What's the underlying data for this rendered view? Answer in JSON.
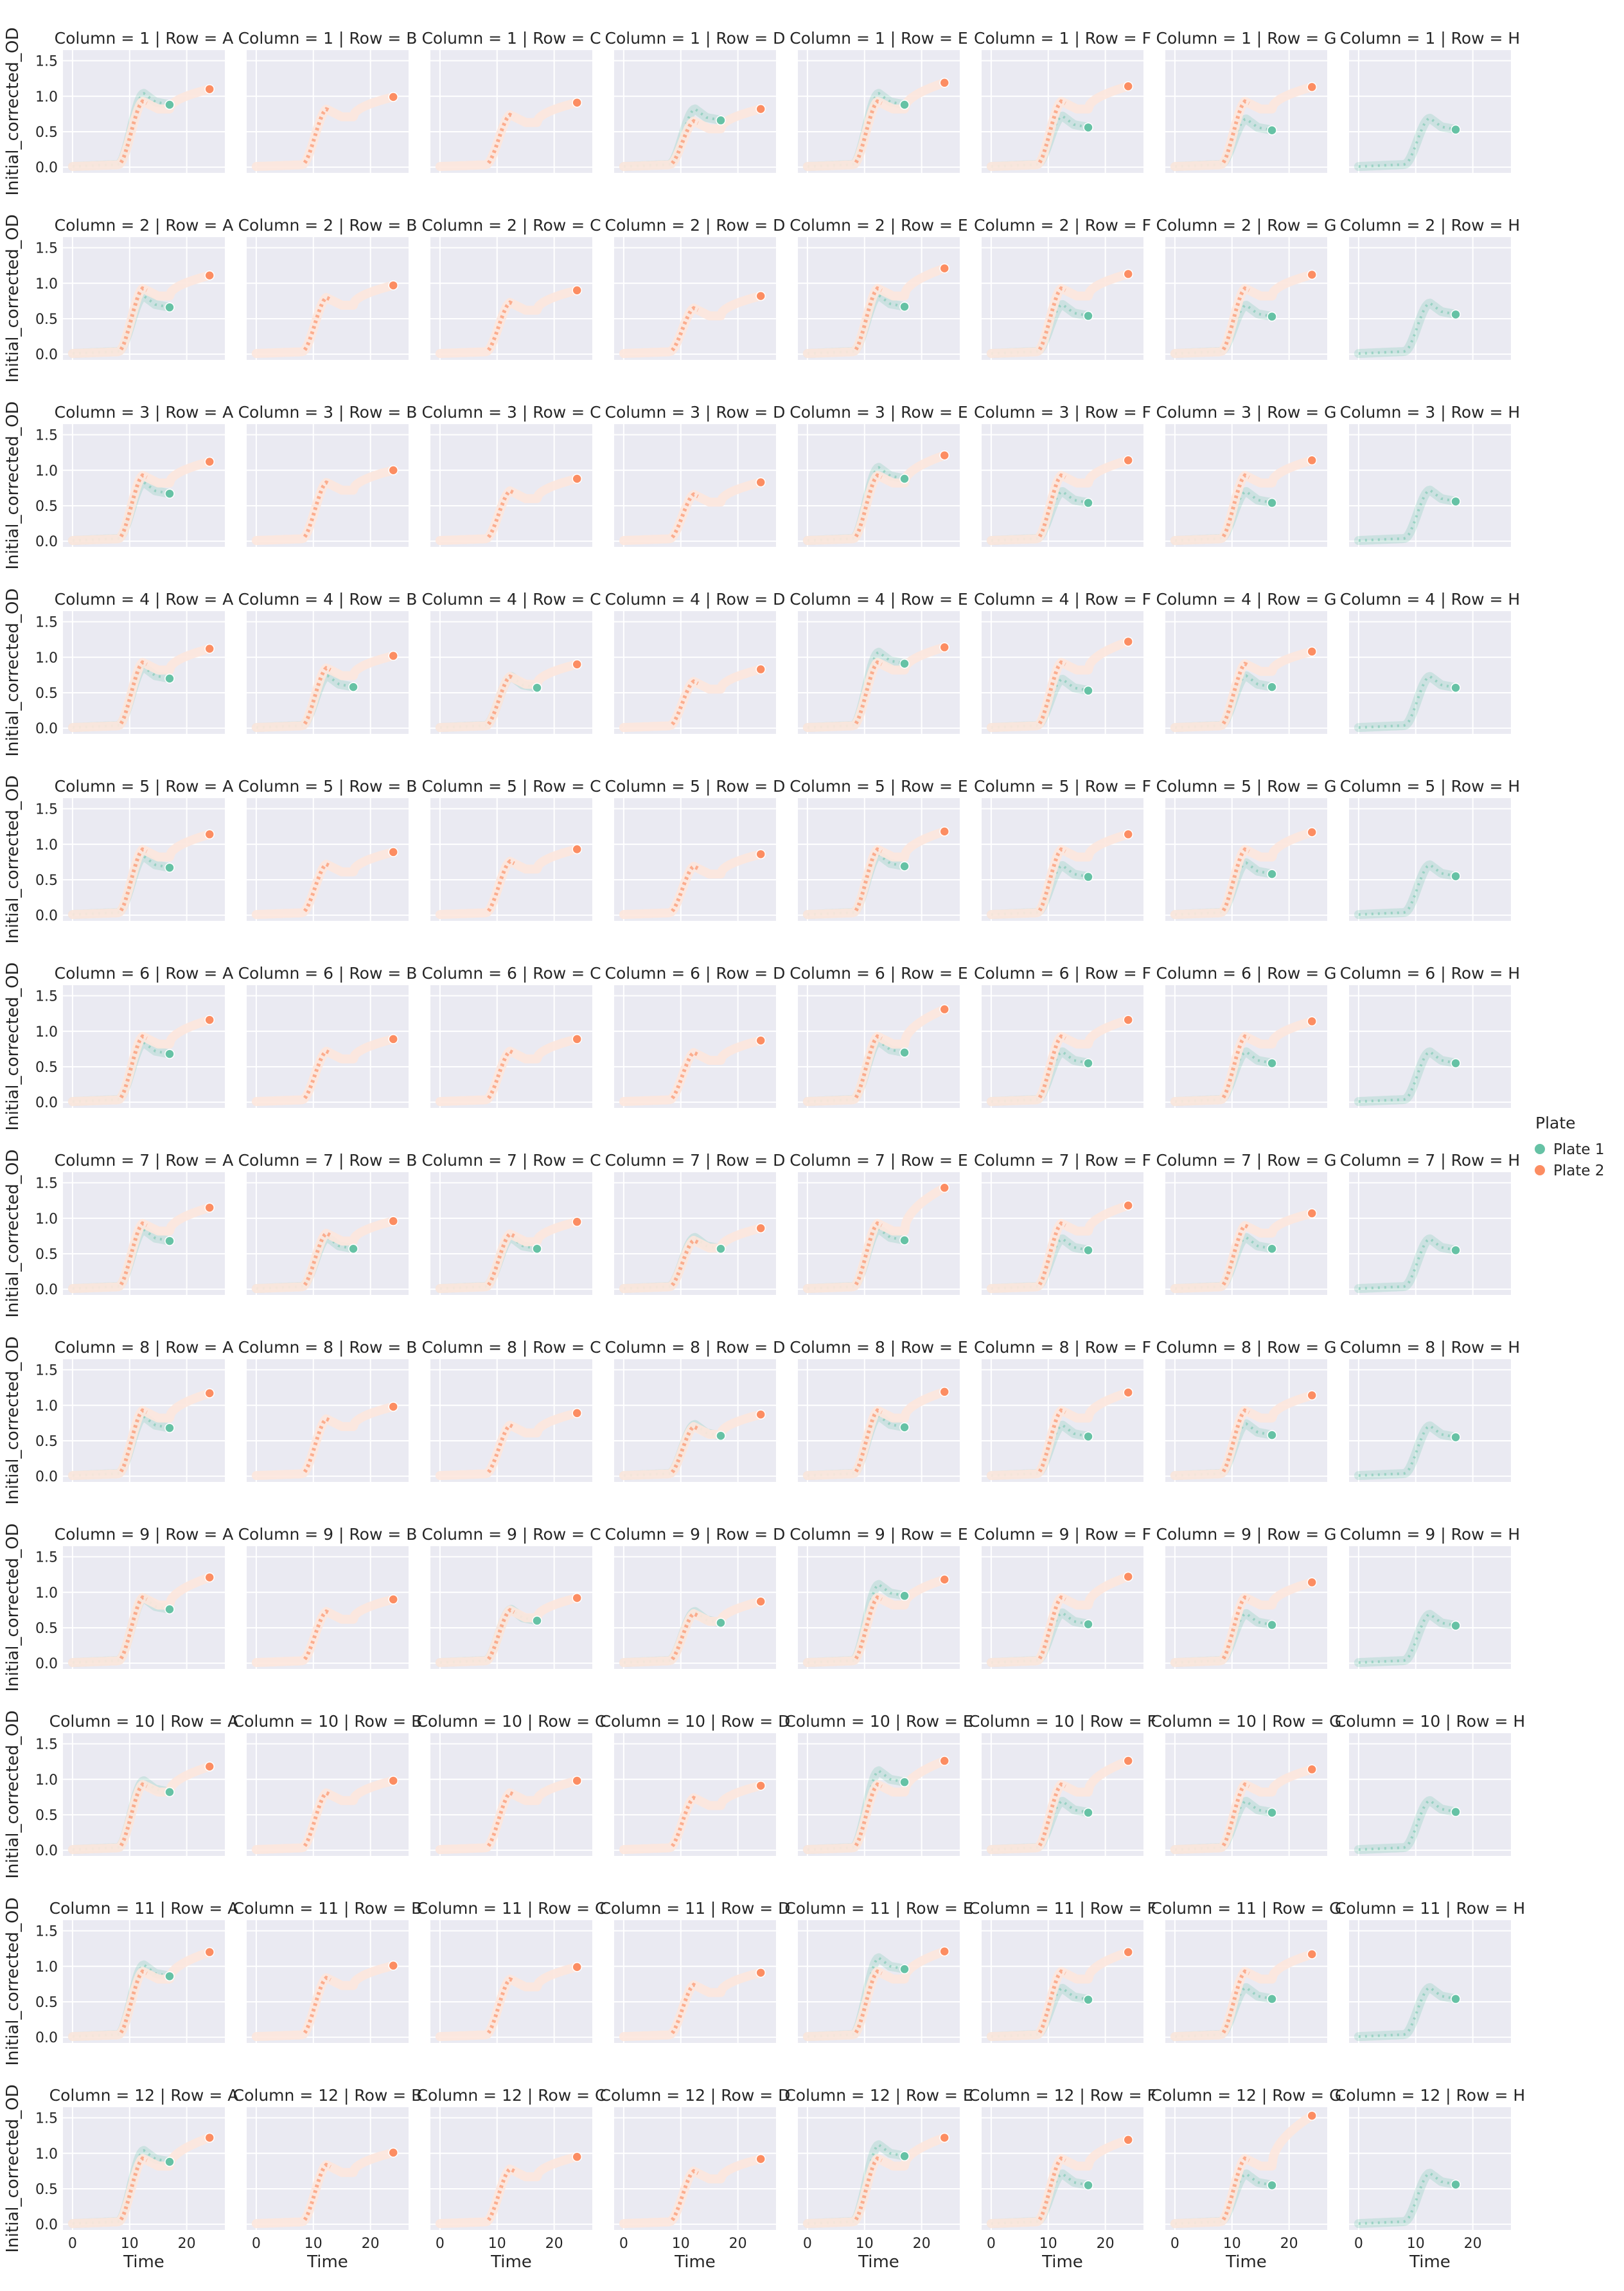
{
  "chart_data": {
    "type": "scatter",
    "layout": "facet-grid",
    "facet_title_template": "Column = {col} | Row = {row}",
    "facet_rows": [
      "1",
      "2",
      "3",
      "4",
      "5",
      "6",
      "7",
      "8",
      "9",
      "10",
      "11",
      "12"
    ],
    "facet_cols": [
      "A",
      "B",
      "C",
      "D",
      "E",
      "F",
      "G",
      "H"
    ],
    "xlabel": "Time",
    "ylabel": "Initial_corrected_OD",
    "xlim": [
      -1,
      26
    ],
    "ylim": [
      -0.08,
      1.65
    ],
    "xticks": [
      0,
      10,
      20
    ],
    "yticks": [
      0.0,
      0.5,
      1.0,
      1.5
    ],
    "xtick_labels": [
      "0",
      "10",
      "20"
    ],
    "ytick_labels": [
      "0.0",
      "0.5",
      "1.0",
      "1.5"
    ],
    "grid": true,
    "background_color": "#eaeaf2",
    "legend": {
      "title": "Plate",
      "placement": "right-center",
      "entries": [
        {
          "name": "Plate 1",
          "color": "#66c2a5"
        },
        {
          "name": "Plate 2",
          "color": "#fc8d62"
        }
      ]
    },
    "series": [
      {
        "name": "Plate 1",
        "color": "#66c2a5",
        "time_range": [
          0,
          17
        ]
      },
      {
        "name": "Plate 2",
        "color": "#fc8d62",
        "time_range": [
          0,
          24
        ]
      }
    ],
    "final_values": {
      "plate1_time": 17,
      "plate2_time": 24,
      "plate1": [
        [
          0.88,
          null,
          null,
          0.66,
          0.88,
          0.56,
          0.52,
          0.53
        ],
        [
          0.66,
          null,
          null,
          null,
          0.67,
          0.54,
          0.53,
          0.56
        ],
        [
          0.67,
          null,
          null,
          null,
          0.88,
          0.54,
          0.54,
          0.56
        ],
        [
          0.7,
          0.58,
          0.57,
          null,
          0.91,
          0.53,
          0.58,
          0.57
        ],
        [
          0.67,
          null,
          null,
          null,
          0.69,
          0.54,
          0.58,
          0.55
        ],
        [
          0.68,
          null,
          null,
          null,
          0.7,
          0.55,
          0.55,
          0.55
        ],
        [
          0.68,
          0.57,
          0.57,
          0.57,
          0.69,
          0.55,
          0.57,
          0.55
        ],
        [
          0.68,
          null,
          null,
          0.57,
          0.69,
          0.56,
          0.58,
          0.55
        ],
        [
          0.76,
          null,
          0.6,
          0.57,
          0.95,
          0.55,
          0.54,
          0.53
        ],
        [
          0.82,
          null,
          null,
          null,
          0.96,
          0.53,
          0.53,
          0.54
        ],
        [
          0.86,
          null,
          null,
          null,
          0.96,
          0.53,
          0.54,
          0.54
        ],
        [
          0.88,
          null,
          null,
          null,
          0.96,
          0.55,
          0.55,
          0.56
        ]
      ],
      "plate2": [
        [
          1.1,
          0.99,
          0.91,
          0.82,
          1.19,
          1.14,
          1.13,
          null
        ],
        [
          1.11,
          0.97,
          0.9,
          0.82,
          1.21,
          1.13,
          1.12,
          null
        ],
        [
          1.12,
          1.0,
          0.88,
          0.83,
          1.21,
          1.14,
          1.14,
          null
        ],
        [
          1.12,
          1.02,
          0.9,
          0.83,
          1.14,
          1.22,
          1.08,
          null
        ],
        [
          1.14,
          0.89,
          0.93,
          0.86,
          1.18,
          1.14,
          1.17,
          null
        ],
        [
          1.16,
          0.89,
          0.89,
          0.87,
          1.31,
          1.16,
          1.14,
          null
        ],
        [
          1.15,
          0.96,
          0.95,
          0.86,
          1.43,
          1.18,
          1.07,
          null
        ],
        [
          1.17,
          0.98,
          0.89,
          0.87,
          1.19,
          1.18,
          1.14,
          null
        ],
        [
          1.21,
          0.9,
          0.92,
          0.87,
          1.18,
          1.22,
          1.14,
          null
        ],
        [
          1.18,
          0.98,
          0.98,
          0.91,
          1.26,
          1.26,
          1.14,
          null
        ],
        [
          1.2,
          1.01,
          0.99,
          0.91,
          1.21,
          1.2,
          1.17,
          null
        ],
        [
          1.22,
          1.01,
          0.95,
          0.92,
          1.22,
          1.19,
          1.53,
          null
        ]
      ]
    }
  }
}
